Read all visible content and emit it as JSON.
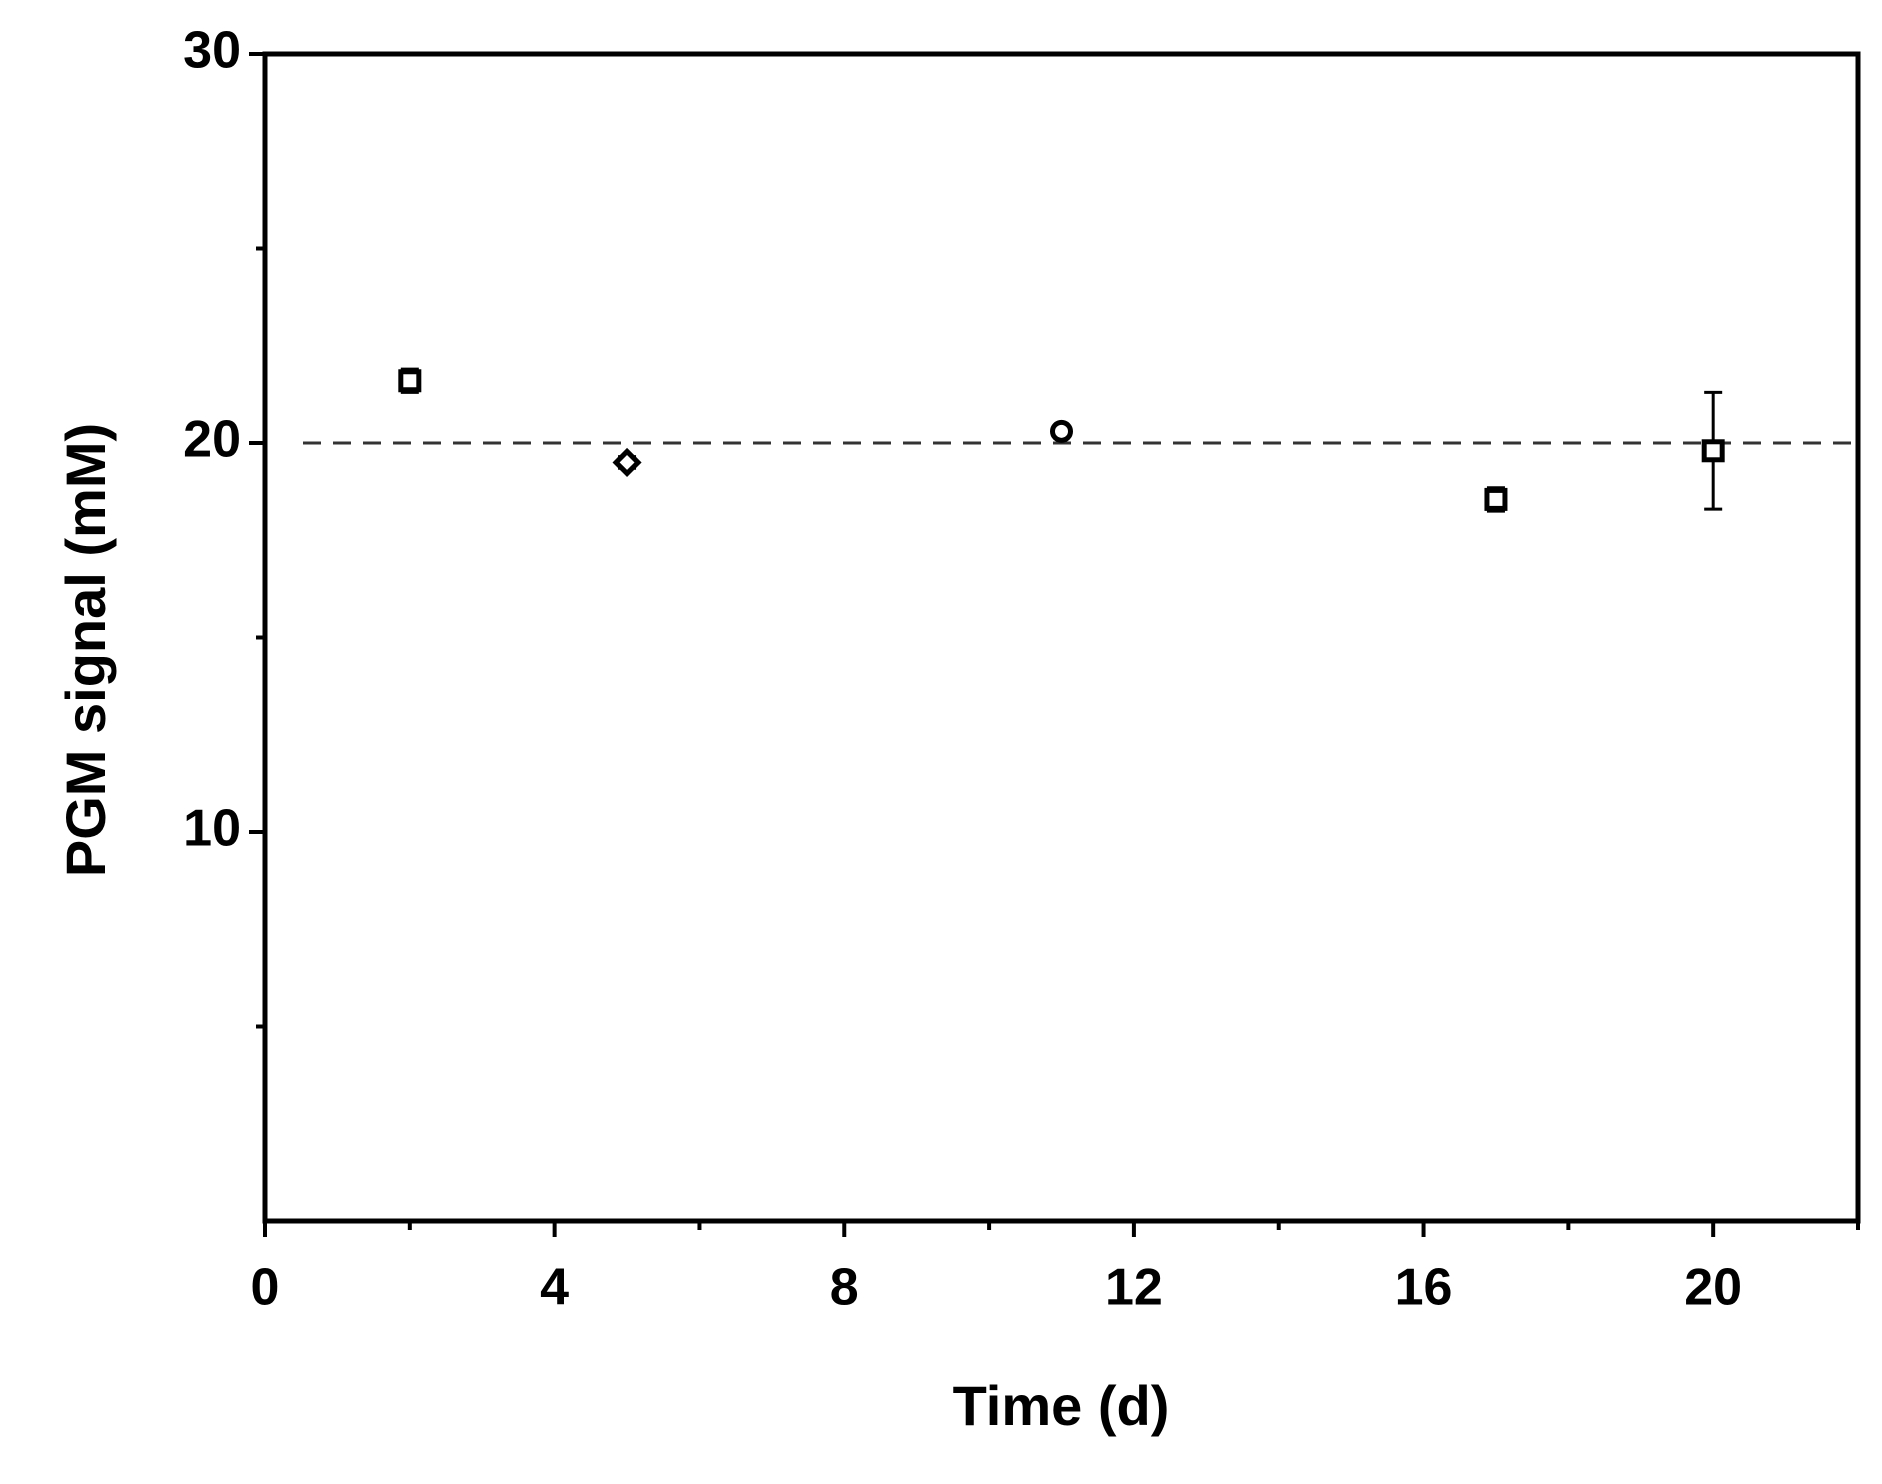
{
  "chart_data": {
    "type": "scatter",
    "xlabel": "Time (d)",
    "ylabel": "PGM signal (mM)",
    "x": [
      2,
      5,
      11,
      17,
      20
    ],
    "values": [
      21.6,
      19.5,
      20.3,
      18.55,
      19.8
    ],
    "errors": [
      0.3,
      0.15,
      0.1,
      0.3,
      1.5
    ],
    "markers": [
      "square",
      "diamond",
      "circle",
      "square",
      "square"
    ],
    "color": "#000000",
    "xlim": [
      0,
      22
    ],
    "xticks": [
      0,
      4,
      8,
      12,
      16,
      20
    ],
    "xminorticks": [
      2,
      6,
      10,
      14,
      18,
      22
    ],
    "ylim": [
      0,
      30
    ],
    "yticks": [
      10,
      20,
      30
    ],
    "yminorticks": [
      5,
      15,
      25
    ],
    "hline": 20,
    "grid": false
  }
}
